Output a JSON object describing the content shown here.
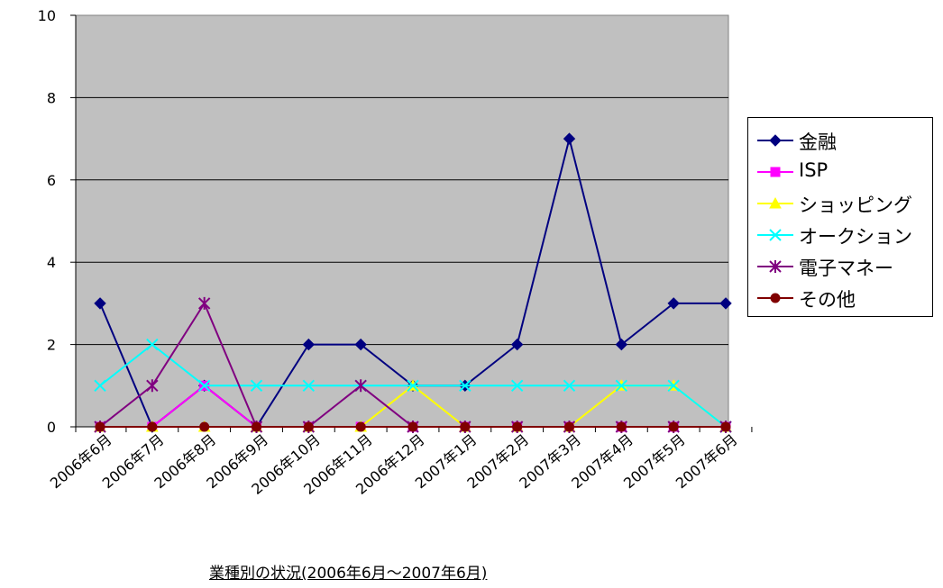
{
  "chart_data": {
    "type": "line",
    "caption": "業種別の状況(2006年6月～2007年6月)",
    "categories": [
      "2006年6月",
      "2006年7月",
      "2006年8月",
      "2006年9月",
      "2006年10月",
      "2006年11月",
      "2006年12月",
      "2007年1月",
      "2007年2月",
      "2007年3月",
      "2007年4月",
      "2007年5月",
      "2007年6月"
    ],
    "ylim": [
      0,
      10
    ],
    "yticks": [
      "0",
      "2",
      "4",
      "6",
      "8",
      "10"
    ],
    "grid": true,
    "plot_background": "#c0c0c0",
    "legend_position": "right",
    "series": [
      {
        "name": "金融",
        "color": "#000080",
        "marker": "diamond",
        "values": [
          3,
          0,
          1,
          0,
          2,
          2,
          1,
          1,
          2,
          7,
          2,
          3,
          3
        ]
      },
      {
        "name": "ISP",
        "color": "#ff00ff",
        "marker": "square",
        "values": [
          0,
          0,
          1,
          0,
          0,
          0,
          0,
          0,
          0,
          0,
          0,
          0,
          0
        ]
      },
      {
        "name": "ショッピング",
        "color": "#ffff00",
        "marker": "triangle",
        "values": [
          0,
          0,
          0,
          0,
          0,
          0,
          1,
          0,
          0,
          0,
          1,
          1,
          0
        ]
      },
      {
        "name": "オークション",
        "color": "#00ffff",
        "marker": "x",
        "values": [
          1,
          2,
          1,
          1,
          1,
          1,
          1,
          1,
          1,
          1,
          1,
          1,
          0
        ]
      },
      {
        "name": "電子マネー",
        "color": "#800080",
        "marker": "star",
        "values": [
          0,
          1,
          3,
          0,
          0,
          1,
          0,
          0,
          0,
          0,
          0,
          0,
          0
        ]
      },
      {
        "name": "その他",
        "color": "#800000",
        "marker": "circle",
        "values": [
          0,
          0,
          0,
          0,
          0,
          0,
          0,
          0,
          0,
          0,
          0,
          0,
          0
        ]
      }
    ]
  }
}
